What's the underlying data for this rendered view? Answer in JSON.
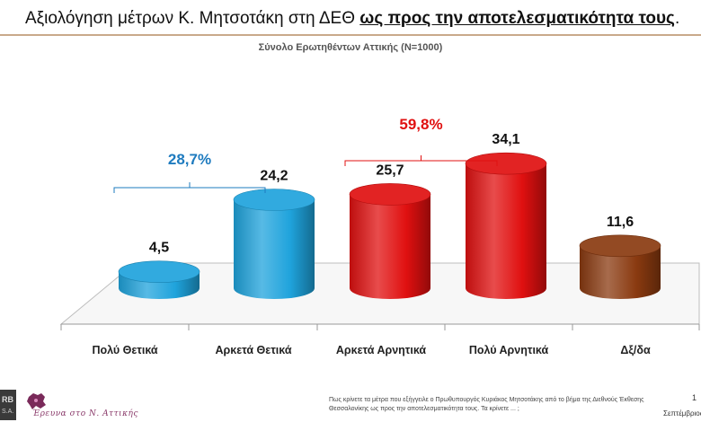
{
  "header": {
    "title_prefix": "Αξιολόγηση μέτρων Κ. Μητσοτάκη στη ΔΕΘ ",
    "title_emphasis": "ως προς την αποτελεσματικότητα τους",
    "title_suffix": ".",
    "subtitle": "Σύνολο Ερωτηθέντων Αττικής (Ν=1000)"
  },
  "chart_data": {
    "type": "bar",
    "title": "Αξιολόγηση μέτρων Κ. Μητσοτάκη στη ΔΕΘ ως προς την αποτελεσματικότητα τους.",
    "subtitle": "Σύνολο Ερωτηθέντων Αττικής (Ν=1000)",
    "categories": [
      "Πολύ Θετικά",
      "Αρκετά Θετικά",
      "Αρκετά Αρνητικά",
      "Πολύ Αρνητικά",
      "Δξ/δα"
    ],
    "values": [
      4.5,
      24.2,
      25.7,
      34.1,
      11.6
    ],
    "value_labels": [
      "4,5",
      "24,2",
      "25,7",
      "34,1",
      "11,6"
    ],
    "colors": [
      "#1fa3dc",
      "#1fa3dc",
      "#e01010",
      "#e01010",
      "#8a3a10"
    ],
    "ylim": [
      0,
      40
    ],
    "xlabel": "",
    "ylabel": "",
    "groups": [
      {
        "label": "28,7%",
        "value": 28.7,
        "from": 0,
        "to": 1,
        "color": "#1e7bbf"
      },
      {
        "label": "59,8%",
        "value": 59.8,
        "from": 2,
        "to": 3,
        "color": "#e01010"
      }
    ]
  },
  "footer": {
    "logo_text": "RB",
    "logo_sub": "S.A.",
    "brand": "Έρευνα στο Ν. Αττικής",
    "note": "Πως κρίνετε τα μέτρα που εξήγγειλε ο Πρωθυπουργός Κυριάκος Μητσοτάκης από το βήμα της Διεθνούς Έκθεσης Θεσσαλονίκης ως προς την αποτελεσματικότητα τους. Τα κρίνετε ... ;",
    "page": "1",
    "date": "Σεπτέμβριος"
  }
}
